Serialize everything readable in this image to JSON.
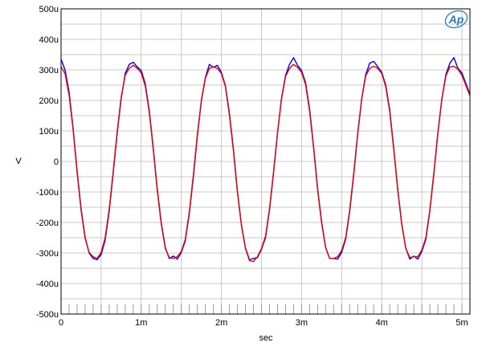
{
  "chart_data": {
    "type": "line",
    "xlabel": "sec",
    "ylabel": "V",
    "xlim": [
      0,
      0.0051
    ],
    "ylim": [
      -0.0005,
      0.0005
    ],
    "grid": true,
    "x_ticks": [
      {
        "value": 0,
        "label": "0"
      },
      {
        "value": 0.001,
        "label": "1m"
      },
      {
        "value": 0.002,
        "label": "2m"
      },
      {
        "value": 0.003,
        "label": "3m"
      },
      {
        "value": 0.004,
        "label": "4m"
      },
      {
        "value": 0.005,
        "label": "5m"
      }
    ],
    "y_ticks": [
      {
        "value": 0.0005,
        "label": "500u"
      },
      {
        "value": 0.0004,
        "label": "400u"
      },
      {
        "value": 0.0003,
        "label": "300u"
      },
      {
        "value": 0.0002,
        "label": "200u"
      },
      {
        "value": 0.0001,
        "label": "100u"
      },
      {
        "value": 0,
        "label": "0"
      },
      {
        "value": -0.0001,
        "label": "-100u"
      },
      {
        "value": -0.0002,
        "label": "-200u"
      },
      {
        "value": -0.0003,
        "label": "-300u"
      },
      {
        "value": -0.0004,
        "label": "-400u"
      },
      {
        "value": -0.0005,
        "label": "-500u"
      }
    ],
    "series": [
      {
        "color": "#0000ee",
        "x": [
          0,
          5e-05,
          0.0001,
          0.00015,
          0.0002,
          0.00025,
          0.0003,
          0.00035,
          0.0004,
          0.00045,
          0.0005,
          0.00055,
          0.0006,
          0.00065,
          0.0007,
          0.00075,
          0.0008,
          0.00085,
          0.0009,
          0.00095,
          0.001,
          0.00105,
          0.0011,
          0.00115,
          0.0012,
          0.00125,
          0.0013,
          0.00135,
          0.0014,
          0.00145,
          0.0015,
          0.00155,
          0.0016,
          0.00165,
          0.0017,
          0.00175,
          0.0018,
          0.00185,
          0.0019,
          0.00195,
          0.002,
          0.00205,
          0.0021,
          0.00215,
          0.0022,
          0.00225,
          0.0023,
          0.00235,
          0.0024,
          0.00245,
          0.0025,
          0.00255,
          0.0026,
          0.00265,
          0.0027,
          0.00275,
          0.0028,
          0.00285,
          0.0029,
          0.00295,
          0.003,
          0.00305,
          0.0031,
          0.00315,
          0.0032,
          0.00325,
          0.0033,
          0.00335,
          0.0034,
          0.00345,
          0.0035,
          0.00355,
          0.0036,
          0.00365,
          0.0037,
          0.00375,
          0.0038,
          0.00385,
          0.0039,
          0.00395,
          0.004,
          0.00405,
          0.0041,
          0.00415,
          0.0042,
          0.00425,
          0.0043,
          0.00435,
          0.0044,
          0.00445,
          0.0045,
          0.00455,
          0.0046,
          0.00465,
          0.0047,
          0.00475,
          0.0048,
          0.00485,
          0.0049,
          0.00495,
          0.005,
          0.0051
        ],
        "y": [
          0.000335,
          0.0003,
          0.000228,
          0.00011,
          -3e-05,
          -0.000155,
          -0.000248,
          -0.0003,
          -0.000318,
          -0.000322,
          -0.000305,
          -0.000258,
          -0.000165,
          -4e-05,
          9.2e-05,
          0.000205,
          0.000288,
          0.000318,
          0.000325,
          0.00031,
          0.000298,
          0.000255,
          0.000168,
          4.5e-05,
          -9e-05,
          -0.0002,
          -0.000282,
          -0.000318,
          -0.00031,
          -0.00032,
          -0.000298,
          -0.00026,
          -0.00017,
          -5.2e-05,
          8.2e-05,
          0.0002,
          0.000275,
          0.000318,
          0.000308,
          0.000315,
          0.000292,
          0.000248,
          0.000158,
          4e-05,
          -9.8e-05,
          -0.000208,
          -0.000283,
          -0.000322,
          -0.000318,
          -0.000315,
          -0.000288,
          -0.00025,
          -0.00016,
          -3.8e-05,
          9.2e-05,
          0.000208,
          0.000282,
          0.000318,
          0.00034,
          0.000315,
          0.000298,
          0.000258,
          0.000172,
          4.8e-05,
          -8.8e-05,
          -0.000198,
          -0.000282,
          -0.000318,
          -0.000318,
          -0.00032,
          -0.000298,
          -0.000255,
          -0.000165,
          -4.5e-05,
          8.8e-05,
          0.000205,
          0.000285,
          0.000322,
          0.000328,
          0.00031,
          0.000292,
          0.00025,
          0.000168,
          4.2e-05,
          -9.2e-05,
          -0.000205,
          -0.000285,
          -0.00032,
          -0.00031,
          -0.00032,
          -0.000295,
          -0.000255,
          -0.000162,
          -4.2e-05,
          9.2e-05,
          0.000205,
          0.000285,
          0.000322,
          0.00034,
          0.000305,
          0.00029,
          0.00022
        ]
      },
      {
        "color": "#ee0000",
        "x": [
          0,
          5e-05,
          0.0001,
          0.00015,
          0.0002,
          0.00025,
          0.0003,
          0.00035,
          0.0004,
          0.00045,
          0.0005,
          0.00055,
          0.0006,
          0.00065,
          0.0007,
          0.00075,
          0.0008,
          0.00085,
          0.0009,
          0.00095,
          0.001,
          0.00105,
          0.0011,
          0.00115,
          0.0012,
          0.00125,
          0.0013,
          0.00135,
          0.0014,
          0.00145,
          0.0015,
          0.00155,
          0.0016,
          0.00165,
          0.0017,
          0.00175,
          0.0018,
          0.00185,
          0.0019,
          0.00195,
          0.002,
          0.00205,
          0.0021,
          0.00215,
          0.0022,
          0.00225,
          0.0023,
          0.00235,
          0.0024,
          0.00245,
          0.0025,
          0.00255,
          0.0026,
          0.00265,
          0.0027,
          0.00275,
          0.0028,
          0.00285,
          0.0029,
          0.00295,
          0.003,
          0.00305,
          0.0031,
          0.00315,
          0.0032,
          0.00325,
          0.0033,
          0.00335,
          0.0034,
          0.00345,
          0.0035,
          0.00355,
          0.0036,
          0.00365,
          0.0037,
          0.00375,
          0.0038,
          0.00385,
          0.0039,
          0.00395,
          0.004,
          0.00405,
          0.0041,
          0.00415,
          0.0042,
          0.00425,
          0.0043,
          0.00435,
          0.0044,
          0.00445,
          0.0045,
          0.00455,
          0.0046,
          0.00465,
          0.0047,
          0.00475,
          0.0048,
          0.00485,
          0.0049,
          0.00495,
          0.005,
          0.0051
        ],
        "y": [
          0.00031,
          0.000288,
          0.000218,
          0.000105,
          -3.5e-05,
          -0.00016,
          -0.000252,
          -0.000298,
          -0.000312,
          -0.000318,
          -0.000298,
          -0.00025,
          -0.000158,
          -3.5e-05,
          9.8e-05,
          0.00021,
          0.000282,
          0.000305,
          0.000315,
          0.000305,
          0.00029,
          0.000248,
          0.000162,
          4e-05,
          -9.5e-05,
          -0.000205,
          -0.000285,
          -0.000315,
          -0.000318,
          -0.000312,
          -0.000295,
          -0.000255,
          -0.000165,
          -4.5e-05,
          8.8e-05,
          0.000198,
          0.000272,
          0.000305,
          0.00031,
          0.000305,
          0.000288,
          0.000245,
          0.000152,
          3.5e-05,
          -0.0001,
          -0.00021,
          -0.000285,
          -0.000325,
          -0.000328,
          -0.000312,
          -0.000285,
          -0.000245,
          -0.000155,
          -3.5e-05,
          9.5e-05,
          0.000205,
          0.000278,
          0.000305,
          0.000318,
          0.000308,
          0.000292,
          0.000252,
          0.000165,
          4.5e-05,
          -9.2e-05,
          -0.000202,
          -0.000282,
          -0.000318,
          -0.000318,
          -0.000312,
          -0.000292,
          -0.00025,
          -0.00016,
          -4e-05,
          9.2e-05,
          0.000205,
          0.00028,
          0.000305,
          0.000312,
          0.000305,
          0.000288,
          0.000245,
          0.000162,
          3.8e-05,
          -9.5e-05,
          -0.000208,
          -0.000285,
          -0.000315,
          -0.000312,
          -0.000312,
          -0.00029,
          -0.00025,
          -0.000158,
          -3.8e-05,
          9.5e-05,
          0.000205,
          0.00028,
          0.00031,
          0.000312,
          0.000302,
          0.000282,
          0.000215
        ]
      }
    ]
  }
}
